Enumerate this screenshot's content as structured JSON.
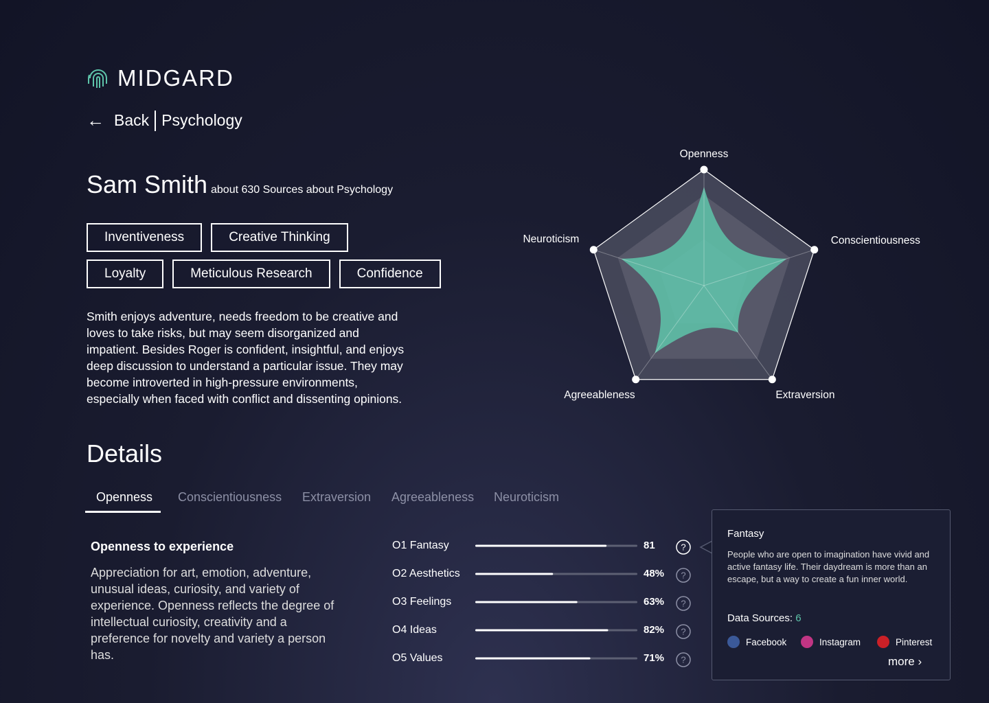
{
  "brand": "MIDGARD",
  "nav": {
    "back": "Back",
    "section": "Psychology"
  },
  "profile": {
    "name": "Sam Smith",
    "sources": "about 630 Sources about Psychology",
    "tags": [
      [
        "Inventiveness",
        "Creative Thinking"
      ],
      [
        "Loyalty",
        "Meticulous Research",
        "Confidence"
      ]
    ],
    "bio": "Smith enjoys adventure, needs freedom to be creative and loves to take risks, but may seem disorganized and impatient. Besides Roger is confident, insightful, and enjoys deep discussion to understand a particular issue. They may become introverted in high-pressure environments, especially when faced with conflict and dissenting opinions."
  },
  "radar": {
    "type": "radar",
    "axes": [
      "Openness",
      "Conscientiousness",
      "Extraversion",
      "Agreeableness",
      "Neuroticism"
    ],
    "values": [
      0.85,
      0.75,
      0.5,
      0.72,
      0.75
    ],
    "color": "#5ec4aa"
  },
  "details": {
    "title": "Details",
    "tabs": [
      "Openness",
      "Conscientiousness",
      "Extraversion",
      "Agreeableness",
      "Neuroticism"
    ],
    "active_tab": 0,
    "heading": "Openness to experience",
    "text": "Appreciation for art, emotion, adventure, unusual ideas, curiosity, and variety of experience. Openness reflects the degree of intellectual curiosity, creativity and a preference for novelty and variety a person has."
  },
  "facets": {
    "type": "bar",
    "categories": [
      "O1 Fantasy",
      "O2 Aesthetics",
      "O3 Feelings",
      "O4 Ideas",
      "O5 Values"
    ],
    "values": [
      81,
      48,
      63,
      82,
      71
    ],
    "value_labels": [
      "81",
      "48%",
      "63%",
      "82%",
      "71%"
    ],
    "xlim": [
      0,
      100
    ]
  },
  "tooltip": {
    "title": "Fantasy",
    "text": "People who are open to imagination have vivid and active fantasy life. Their daydream is more than an escape, but a way to create a fun inner world.",
    "sources_label": "Data Sources:",
    "sources_count": 6,
    "sources": [
      "Facebook",
      "Instagram",
      "Pinterest"
    ],
    "more": "more"
  }
}
